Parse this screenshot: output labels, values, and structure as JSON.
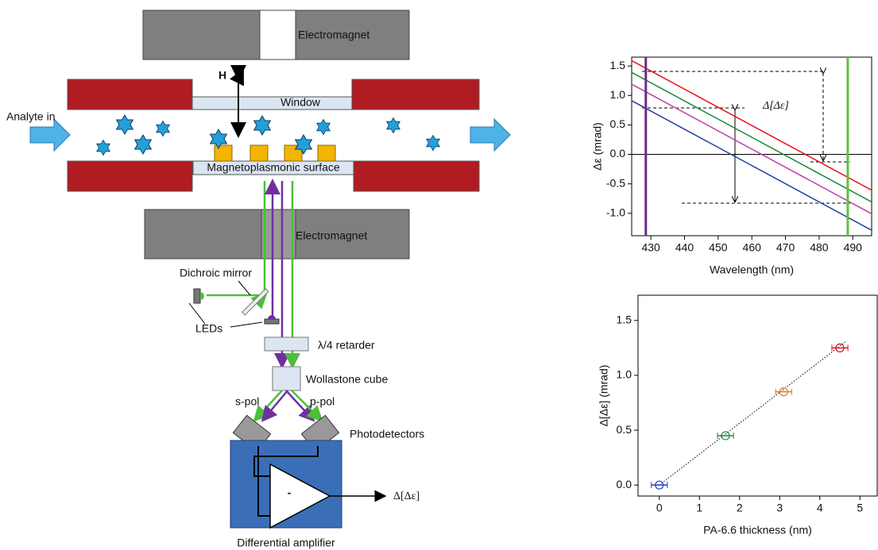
{
  "diagram": {
    "top_magnet": "Electromagnet",
    "bottom_magnet": "Electromagnet",
    "field": "H",
    "window": "Window",
    "inlet": "Analyte in",
    "surface": "Magnetoplasmonic surface",
    "mirror": "Dichroic mirror",
    "leds": "LEDs",
    "retarder": "λ/4 retarder",
    "cube": "Wollastone cube",
    "s_pol": "s-pol",
    "p_pol": "p-pol",
    "detectors": "Photodetectors",
    "minus": "-",
    "output": "Δ[Δε]",
    "amplifier": "Differential amplifier"
  },
  "chart_data": [
    {
      "type": "line",
      "xlabel": "Wavelength (nm)",
      "ylabel": "Δε (mrad)",
      "annotation": "Δ[Δε]",
      "x": [
        424,
        496
      ],
      "series": [
        {
          "color": "#e8141c",
          "values": [
            1.6,
            -0.62
          ]
        },
        {
          "color": "#1a8a3a",
          "values": [
            1.4,
            -0.82
          ]
        },
        {
          "color": "#c03ca0",
          "values": [
            1.2,
            -1.02
          ]
        },
        {
          "color": "#2040a0",
          "values": [
            0.92,
            -1.3
          ]
        }
      ],
      "vlines": [
        {
          "x": 428.5,
          "color": "#6a2a8a"
        },
        {
          "x": 488.5,
          "color": "#60c040"
        }
      ],
      "hline": 0,
      "xlim": [
        424.3,
        495.6
      ],
      "ylim": [
        -1.38,
        1.65
      ],
      "xticks": [
        430,
        440,
        450,
        460,
        470,
        480,
        490
      ],
      "yticks": [
        {
          "value": -1,
          "label": "-1.0"
        },
        -0.5,
        {
          "value": 0,
          "label": "0.0"
        },
        0.5,
        {
          "value": 1,
          "label": "1.0"
        },
        1.5
      ]
    },
    {
      "type": "scatter",
      "xlabel": "PA-6.6 thickness (nm)",
      "ylabel": "Δ[Δε] (mrad)",
      "x": [
        0,
        1.65,
        3.1,
        4.5
      ],
      "values": [
        0,
        0.45,
        0.85,
        1.25
      ],
      "xerr": [
        0.2,
        0.2,
        0.2,
        0.2
      ],
      "colors": [
        "#2040c0",
        "#1a8a3a",
        "#e87a1a",
        "#d8141c"
      ],
      "fit": {
        "x": [
          0,
          4.65
        ],
        "values": [
          0,
          1.31
        ]
      },
      "xlim": [
        -0.53,
        5.43
      ],
      "ylim": [
        -0.1,
        1.73
      ],
      "xticks": [
        0,
        1,
        2,
        3,
        4,
        5
      ],
      "yticks": [
        {
          "value": 0,
          "label": "0.0"
        },
        0.5,
        {
          "value": 1,
          "label": "1.0"
        },
        1.5
      ]
    }
  ]
}
